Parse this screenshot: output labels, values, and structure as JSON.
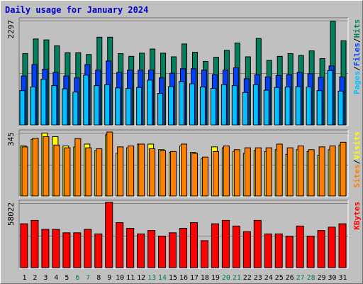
{
  "title": "Daily usage for January 2024",
  "colors": {
    "background": "#c0c0c0",
    "title": "#0000cc",
    "hits": "#00805c",
    "files": "#0040ff",
    "pages": "#00c0ff",
    "visits": "#ffff00",
    "sites": "#ff8000",
    "kbytes": "#ff0000",
    "weekend_day_label": "#00805c",
    "day_label": "#000000"
  },
  "chart_data": [
    {
      "type": "bar",
      "panel": "hits-files-pages",
      "y_axis_max_label": "2297",
      "ylim": [
        0,
        2297
      ],
      "legend": [
        "Pages",
        "/",
        "Files",
        "/",
        "Hits"
      ],
      "categories": [
        "1",
        "2",
        "3",
        "4",
        "5",
        "6",
        "7",
        "8",
        "9",
        "10",
        "11",
        "12",
        "13",
        "14",
        "15",
        "16",
        "17",
        "18",
        "19",
        "20",
        "21",
        "22",
        "23",
        "24",
        "25",
        "26",
        "27",
        "28",
        "29",
        "30",
        "31"
      ],
      "series": [
        {
          "name": "Hits",
          "values": [
            1560,
            1880,
            1860,
            1730,
            1580,
            1580,
            1540,
            1920,
            1920,
            1560,
            1500,
            1570,
            1660,
            1570,
            1490,
            1770,
            1590,
            1390,
            1480,
            1630,
            1790,
            1490,
            1890,
            1410,
            1500,
            1560,
            1520,
            1620,
            1450,
            2270,
            1840
          ]
        },
        {
          "name": "Files",
          "values": [
            1070,
            1320,
            1220,
            1150,
            1070,
            1030,
            1320,
            1200,
            1400,
            1150,
            1200,
            1200,
            1200,
            1030,
            1130,
            1230,
            1230,
            1200,
            1100,
            1200,
            1250,
            1010,
            1100,
            1050,
            1080,
            1100,
            1150,
            1120,
            1040,
            1290,
            1050
          ]
        },
        {
          "name": "Pages",
          "values": [
            750,
            830,
            1000,
            860,
            790,
            720,
            1090,
            860,
            880,
            810,
            800,
            820,
            980,
            690,
            840,
            950,
            900,
            830,
            800,
            880,
            860,
            710,
            880,
            760,
            820,
            830,
            840,
            830,
            750,
            1190,
            740
          ]
        }
      ],
      "weekend_days": [
        "6",
        "7",
        "13",
        "14",
        "20",
        "21",
        "27",
        "28"
      ]
    },
    {
      "type": "bar",
      "panel": "visits-sites",
      "y_axis_max_label": "345",
      "ylim": [
        0,
        345
      ],
      "legend": [
        "Sites",
        "/",
        "Visits"
      ],
      "categories": [
        "1",
        "2",
        "3",
        "4",
        "5",
        "6",
        "7",
        "8",
        "9",
        "10",
        "11",
        "12",
        "13",
        "14",
        "15",
        "16",
        "17",
        "18",
        "19",
        "20",
        "21",
        "22",
        "23",
        "24",
        "25",
        "26",
        "27",
        "28",
        "29",
        "30",
        "31"
      ],
      "series": [
        {
          "name": "Visits",
          "values": [
            270,
            305,
            340,
            320,
            270,
            265,
            280,
            245,
            330,
            230,
            260,
            280,
            280,
            250,
            235,
            270,
            235,
            200,
            265,
            260,
            240,
            230,
            245,
            240,
            250,
            225,
            250,
            240,
            220,
            250,
            275
          ]
        },
        {
          "name": "Sites",
          "values": [
            265,
            312,
            320,
            275,
            260,
            310,
            260,
            255,
            345,
            265,
            270,
            280,
            255,
            245,
            240,
            280,
            230,
            210,
            240,
            270,
            250,
            260,
            260,
            260,
            280,
            260,
            270,
            250,
            265,
            270,
            290
          ]
        }
      ]
    },
    {
      "type": "bar",
      "panel": "kbytes",
      "y_axis_max_label": "58022",
      "ylim": [
        0,
        58022
      ],
      "legend": [
        "KBytes"
      ],
      "categories": [
        "1",
        "2",
        "3",
        "4",
        "5",
        "6",
        "7",
        "8",
        "9",
        "10",
        "11",
        "12",
        "13",
        "14",
        "15",
        "16",
        "17",
        "18",
        "19",
        "20",
        "21",
        "22",
        "23",
        "24",
        "25",
        "26",
        "27",
        "28",
        "29",
        "30",
        "31"
      ],
      "series": [
        {
          "name": "KBytes",
          "values": [
            39000,
            42000,
            34000,
            34000,
            31000,
            31000,
            34000,
            30000,
            58000,
            40000,
            35000,
            30000,
            33000,
            28000,
            31000,
            35000,
            40000,
            24000,
            39000,
            42000,
            37000,
            32000,
            42000,
            30000,
            30000,
            28000,
            37000,
            28000,
            33000,
            36000,
            39000
          ]
        }
      ]
    }
  ]
}
